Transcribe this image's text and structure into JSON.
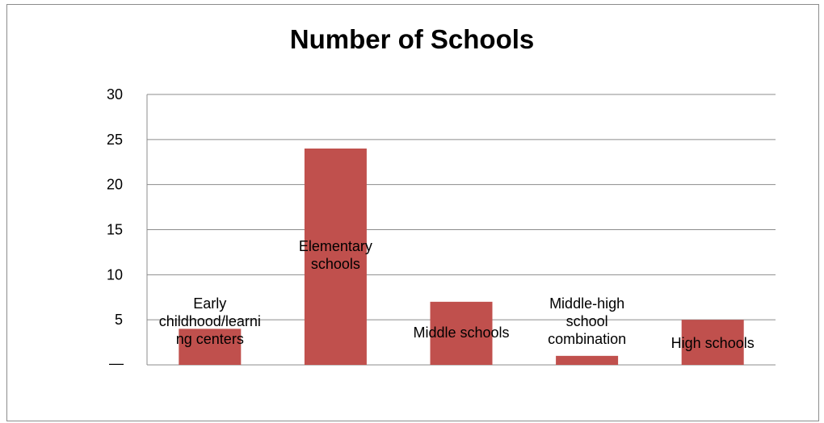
{
  "chart_data": {
    "type": "bar",
    "title": "Number of Schools",
    "categories": [
      "Early childhood/learning centers",
      "Elementary schools",
      "Middle schools",
      "Middle-high school combination",
      "High schools"
    ],
    "category_label_lines": [
      [
        "Early",
        "childhood/learni",
        "ng centers"
      ],
      [
        "Elementary",
        "schools"
      ],
      [
        "Middle schools"
      ],
      [
        "Middle-high",
        "school",
        "combination"
      ],
      [
        "High schools"
      ]
    ],
    "values": [
      4,
      24,
      7,
      1,
      5
    ],
    "ylim": [
      0,
      30
    ],
    "yticks": [
      5,
      10,
      15,
      20,
      25,
      30
    ],
    "zero_tick_label": "—",
    "xlabel": "",
    "ylabel": "",
    "grid": true,
    "bar_color": "#c0504d",
    "grid_color": "#8c8c8c"
  }
}
